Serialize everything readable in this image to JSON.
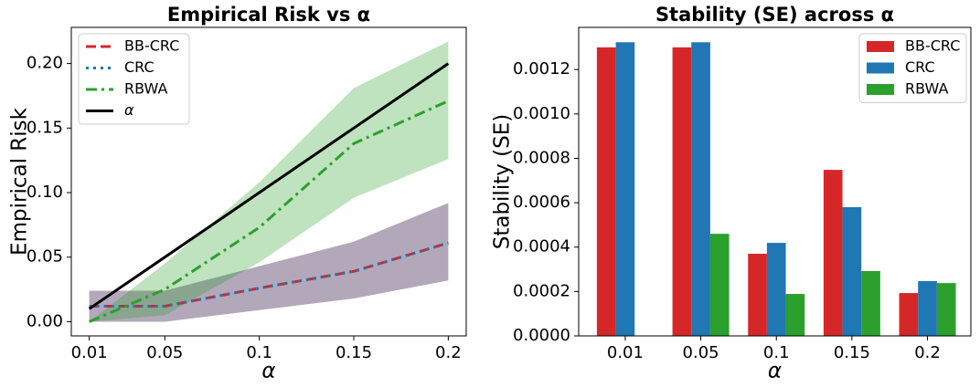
{
  "chart_data": [
    {
      "type": "line",
      "title": "Empirical Risk vs α",
      "xlabel": "α",
      "ylabel": "Empirical Risk",
      "x": [
        0.01,
        0.05,
        0.1,
        0.15,
        0.2
      ],
      "xlim": [
        0.0005,
        0.2095
      ],
      "xticks": [
        0.01,
        0.05,
        0.1,
        0.15,
        0.2
      ],
      "ylim": [
        -0.011,
        0.228
      ],
      "yticks": [
        {
          "value": 0,
          "label": "0.00"
        },
        {
          "value": 0.05,
          "label": "0.05"
        },
        {
          "value": 0.1,
          "label": "0.10"
        },
        {
          "value": 0.15,
          "label": "0.15"
        },
        {
          "value": 0.2,
          "label": "0.20"
        }
      ],
      "legend": "upper left",
      "series": [
        {
          "name": "BB-CRC",
          "color": "#d62728",
          "linestyle": "dashed",
          "values": [
            0.012,
            0.012,
            0.026,
            0.039,
            0.061
          ],
          "lower": [
            0.0,
            0.0,
            0.009,
            0.018,
            0.032
          ],
          "upper": [
            0.024,
            0.024,
            0.043,
            0.062,
            0.092
          ]
        },
        {
          "name": "CRC",
          "color": "#1f77b4",
          "linestyle": "dotted",
          "values": [
            0.012,
            0.012,
            0.026,
            0.039,
            0.061
          ],
          "lower": [
            0.0,
            0.0,
            0.009,
            0.018,
            0.032
          ],
          "upper": [
            0.024,
            0.024,
            0.043,
            0.062,
            0.092
          ]
        },
        {
          "name": "RBWA",
          "color": "#2ca02c",
          "linestyle": "dashdot",
          "values": [
            0.0,
            0.025,
            0.073,
            0.138,
            0.171
          ],
          "lower": [
            0.0,
            0.005,
            0.046,
            0.096,
            0.126
          ],
          "upper": [
            0.0,
            0.045,
            0.108,
            0.181,
            0.217
          ]
        },
        {
          "name": "α",
          "color": "#000000",
          "linestyle": "solid",
          "values": [
            0.01,
            0.05,
            0.1,
            0.15,
            0.2
          ]
        }
      ]
    },
    {
      "type": "bar",
      "title": "Stability (SE) across α",
      "xlabel": "α",
      "ylabel": "Stability (SE)",
      "categories": [
        "0.01",
        "0.05",
        "0.1",
        "0.15",
        "0.2"
      ],
      "ylim": [
        0,
        0.00139
      ],
      "yticks": [
        {
          "value": 0,
          "label": "0.0000"
        },
        {
          "value": 0.0002,
          "label": "0.0002"
        },
        {
          "value": 0.0004,
          "label": "0.0004"
        },
        {
          "value": 0.0006,
          "label": "0.0006"
        },
        {
          "value": 0.0008,
          "label": "0.0008"
        },
        {
          "value": 0.001,
          "label": "0.0010"
        },
        {
          "value": 0.0012,
          "label": "0.0012"
        }
      ],
      "legend": "upper right",
      "series": [
        {
          "name": "BB-CRC",
          "color": "#d62728",
          "values": [
            0.0013,
            0.0013,
            0.00037,
            0.000748,
            0.000193
          ]
        },
        {
          "name": "CRC",
          "color": "#1f77b4",
          "values": [
            0.001323,
            0.001323,
            0.000419,
            0.00058,
            0.000247
          ]
        },
        {
          "name": "RBWA",
          "color": "#2ca02c",
          "values": [
            0,
            0.00046,
            0.000189,
            0.000292,
            0.000238
          ]
        }
      ]
    }
  ]
}
